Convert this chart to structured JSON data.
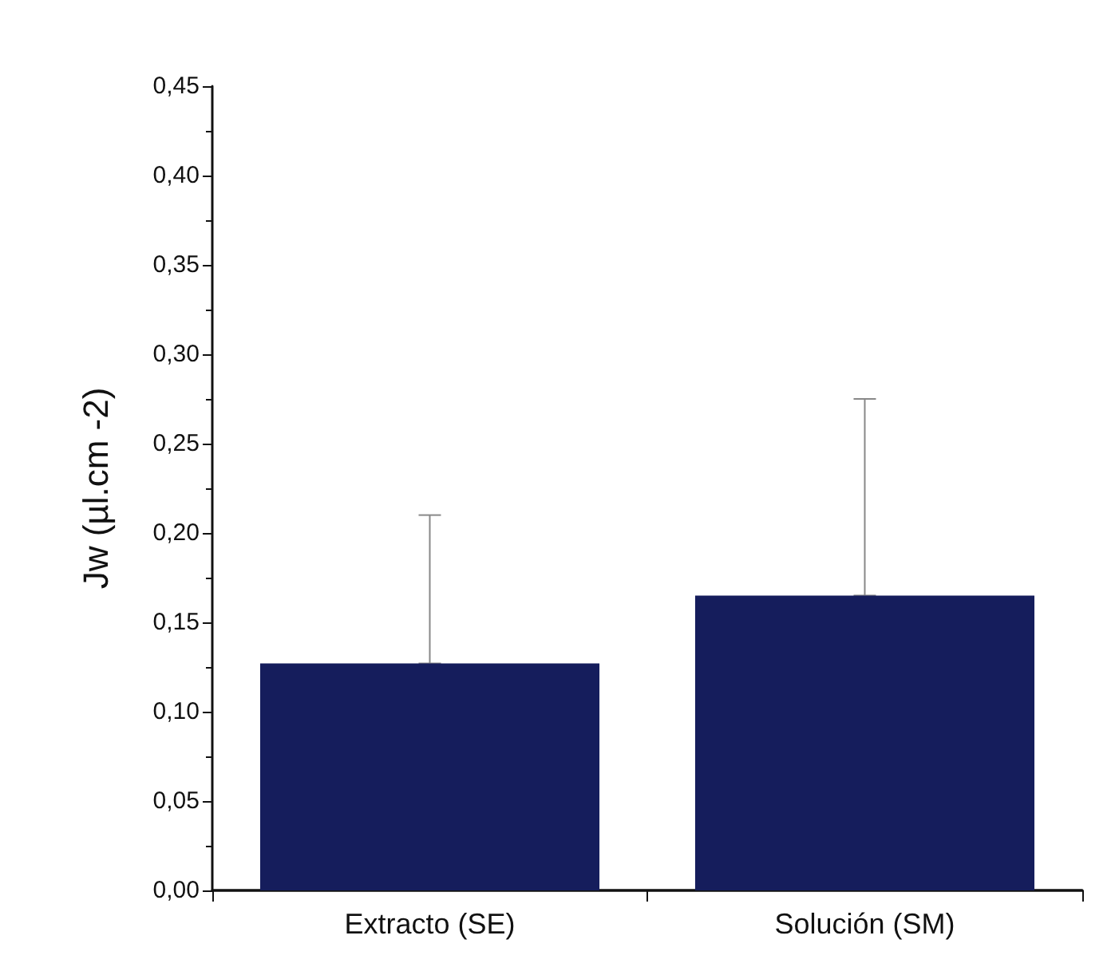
{
  "chart_data": {
    "type": "bar",
    "ylabel": "Jw (µl.cm -2)",
    "categories": [
      "Extracto (SE)",
      "Solución (SM)"
    ],
    "values": [
      0.127,
      0.165
    ],
    "color": "#151d5c",
    "errors": [
      [
        0.127,
        0.21
      ],
      [
        0.165,
        0.275
      ]
    ],
    "ylim": [
      0,
      0.45
    ],
    "yticks": [
      {
        "value": 0,
        "label": "0,00"
      },
      {
        "value": 0.05,
        "label": "0,05"
      },
      {
        "value": 0.1,
        "label": "0,10"
      },
      {
        "value": 0.15,
        "label": "0,15"
      },
      {
        "value": 0.2,
        "label": "0,20"
      },
      {
        "value": 0.25,
        "label": "0,25"
      },
      {
        "value": 0.3,
        "label": "0,30"
      },
      {
        "value": 0.35,
        "label": "0,35"
      },
      {
        "value": 0.4,
        "label": "0,40"
      },
      {
        "value": 0.45,
        "label": "0,45"
      }
    ],
    "grid": false
  }
}
